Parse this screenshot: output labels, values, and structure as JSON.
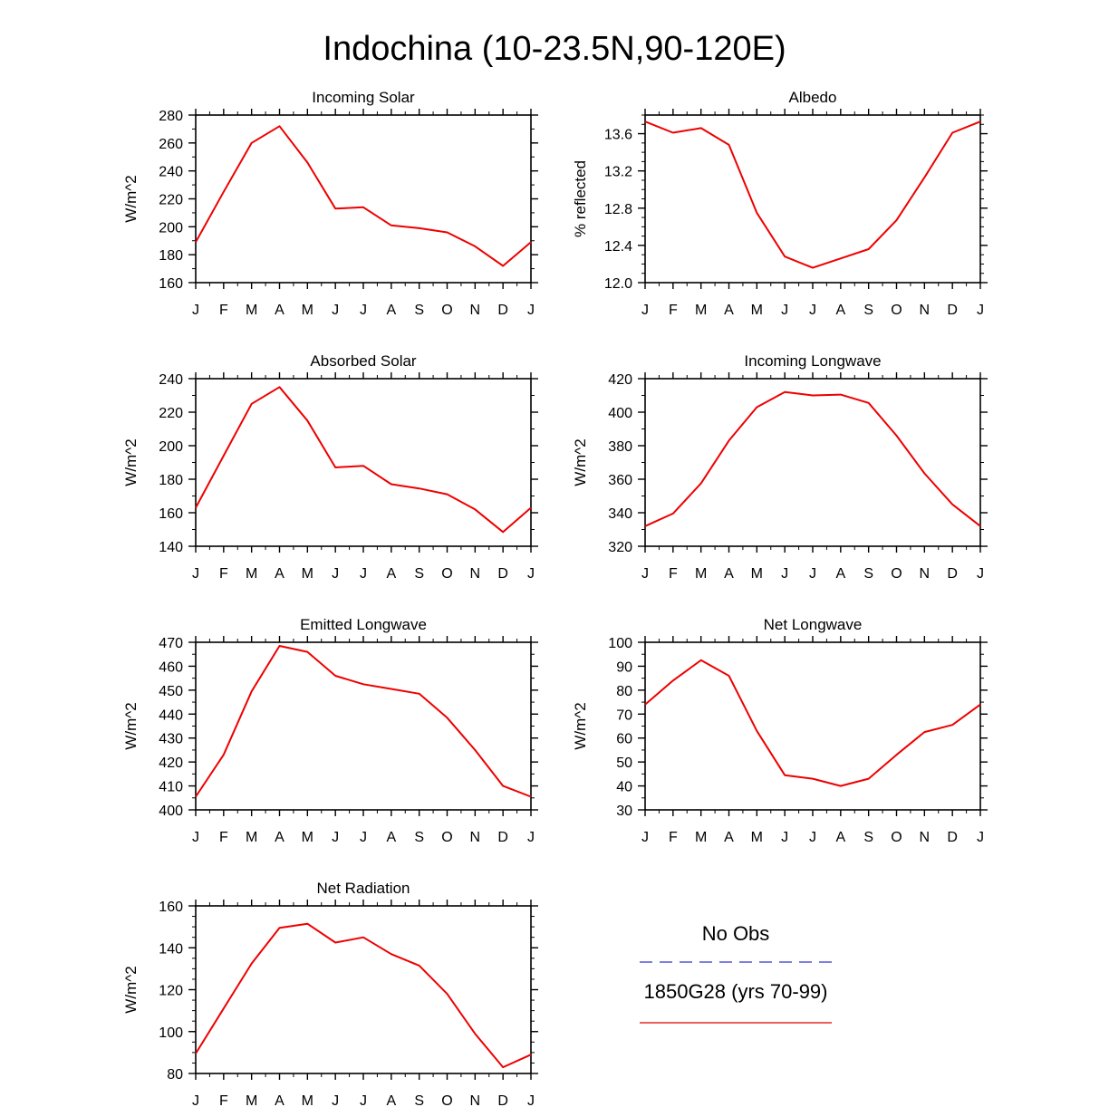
{
  "figure": {
    "title": "Indochina (10-23.5N,90-120E)"
  },
  "legend": {
    "entries": [
      {
        "label": "No Obs",
        "color": "#3333cc",
        "style": "dashed"
      },
      {
        "label": "1850G28 (yrs 70-99)",
        "color": "#dd0000",
        "style": "solid"
      }
    ]
  },
  "chart_data": [
    {
      "type": "line",
      "title": "Incoming Solar",
      "ylabel": "W/m^2",
      "xlabel": "",
      "categories": [
        "J",
        "F",
        "M",
        "A",
        "M",
        "J",
        "J",
        "A",
        "S",
        "O",
        "N",
        "D",
        "J"
      ],
      "ylim": [
        160,
        280
      ],
      "yticks": [
        160,
        180,
        200,
        220,
        240,
        260,
        280
      ],
      "yminor": 10,
      "ytick_decimals": 0,
      "series": [
        {
          "color": "#ee0000",
          "values": [
            189,
            225,
            260,
            272,
            246,
            213,
            214,
            201,
            199,
            196,
            186,
            172,
            189
          ]
        }
      ]
    },
    {
      "type": "line",
      "title": "Albedo",
      "ylabel": "% reflected",
      "xlabel": "",
      "categories": [
        "J",
        "F",
        "M",
        "A",
        "M",
        "J",
        "J",
        "A",
        "S",
        "O",
        "N",
        "D",
        "J"
      ],
      "ylim": [
        12.0,
        13.8
      ],
      "yticks": [
        12.0,
        12.4,
        12.8,
        13.2,
        13.6
      ],
      "yminor": 0.1,
      "ytick_decimals": 1,
      "series": [
        {
          "color": "#ee0000",
          "values": [
            13.73,
            13.61,
            13.66,
            13.48,
            12.75,
            12.28,
            12.16,
            12.26,
            12.36,
            12.67,
            13.13,
            13.61,
            13.73
          ]
        }
      ]
    },
    {
      "type": "line",
      "title": "Absorbed Solar",
      "ylabel": "W/m^2",
      "xlabel": "",
      "categories": [
        "J",
        "F",
        "M",
        "A",
        "M",
        "J",
        "J",
        "A",
        "S",
        "O",
        "N",
        "D",
        "J"
      ],
      "ylim": [
        140,
        240
      ],
      "yticks": [
        140,
        160,
        180,
        200,
        220,
        240
      ],
      "yminor": 10,
      "ytick_decimals": 0,
      "series": [
        {
          "color": "#ee0000",
          "values": [
            163,
            194,
            225,
            235,
            215,
            187,
            188,
            177,
            174.5,
            171,
            162,
            148.5,
            163
          ]
        }
      ]
    },
    {
      "type": "line",
      "title": "Incoming Longwave",
      "ylabel": "W/m^2",
      "xlabel": "",
      "categories": [
        "J",
        "F",
        "M",
        "A",
        "M",
        "J",
        "J",
        "A",
        "S",
        "O",
        "N",
        "D",
        "J"
      ],
      "ylim": [
        320,
        420
      ],
      "yticks": [
        320,
        340,
        360,
        380,
        400,
        420
      ],
      "yminor": 10,
      "ytick_decimals": 0,
      "series": [
        {
          "color": "#ee0000",
          "values": [
            332,
            339.5,
            357.5,
            383,
            403,
            412,
            410,
            410.5,
            405.5,
            386,
            363.5,
            345,
            332
          ]
        }
      ]
    },
    {
      "type": "line",
      "title": "Emitted Longwave",
      "ylabel": "W/m^2",
      "xlabel": "",
      "categories": [
        "J",
        "F",
        "M",
        "A",
        "M",
        "J",
        "J",
        "A",
        "S",
        "O",
        "N",
        "D",
        "J"
      ],
      "ylim": [
        400,
        470
      ],
      "yticks": [
        400,
        410,
        420,
        430,
        440,
        450,
        460,
        470
      ],
      "yminor": 5,
      "ytick_decimals": 0,
      "series": [
        {
          "color": "#ee0000",
          "values": [
            405.5,
            423,
            449.5,
            468.5,
            466,
            456,
            452.5,
            450.5,
            448.5,
            438.5,
            425,
            410,
            405.5
          ]
        }
      ]
    },
    {
      "type": "line",
      "title": "Net Longwave",
      "ylabel": "W/m^2",
      "xlabel": "",
      "categories": [
        "J",
        "F",
        "M",
        "A",
        "M",
        "J",
        "J",
        "A",
        "S",
        "O",
        "N",
        "D",
        "J"
      ],
      "ylim": [
        30,
        100
      ],
      "yticks": [
        30,
        40,
        50,
        60,
        70,
        80,
        90,
        100
      ],
      "yminor": 5,
      "ytick_decimals": 0,
      "series": [
        {
          "color": "#ee0000",
          "values": [
            74,
            84,
            92.5,
            86,
            63,
            44.5,
            43,
            40,
            43,
            53,
            62.5,
            65.5,
            74
          ]
        }
      ]
    },
    {
      "type": "line",
      "title": "Net Radiation",
      "ylabel": "W/m^2",
      "xlabel": "",
      "categories": [
        "J",
        "F",
        "M",
        "A",
        "M",
        "J",
        "J",
        "A",
        "S",
        "O",
        "N",
        "D",
        "J"
      ],
      "ylim": [
        80,
        160
      ],
      "yticks": [
        80,
        100,
        120,
        140,
        160
      ],
      "yminor": 5,
      "ytick_decimals": 0,
      "series": [
        {
          "color": "#ee0000",
          "values": [
            89.5,
            111,
            132.5,
            149.5,
            151.5,
            142.5,
            145,
            137,
            131.5,
            118,
            99,
            83,
            89
          ]
        }
      ]
    }
  ]
}
